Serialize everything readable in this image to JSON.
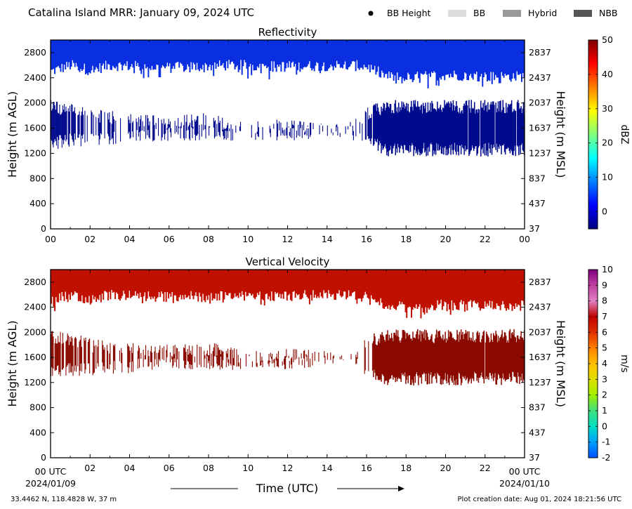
{
  "header": {
    "title": "Catalina Island MRR:  January 09, 2024 UTC",
    "legend": [
      {
        "label": "BB Height",
        "kind": "dot",
        "color": "#000000"
      },
      {
        "label": "BB",
        "kind": "swatch",
        "color": "#dcdcdc"
      },
      {
        "label": "Hybrid",
        "kind": "swatch",
        "color": "#999999"
      },
      {
        "label": "NBB",
        "kind": "swatch",
        "color": "#555555"
      }
    ]
  },
  "footer": {
    "xlabel": "Time (UTC)",
    "start_time": "00 UTC",
    "end_time": "00 UTC",
    "start_date": "2024/01/09",
    "end_date": "2024/01/10",
    "location": "33.4462 N, 118.4828 W, 37 m",
    "creation": "Plot creation date: Aug 01, 2024 18:21:56 UTC"
  },
  "chart_data": [
    {
      "type": "heatmap",
      "title": "Reflectivity",
      "xlabel": "",
      "ylabel": "Height (m AGL)",
      "ylabel_right": "Height (m MSL)",
      "xlim": [
        0,
        24
      ],
      "ylim": [
        0,
        3000
      ],
      "x_tick_labels": [
        "00",
        "02",
        "04",
        "06",
        "08",
        "10",
        "12",
        "14",
        "16",
        "18",
        "20",
        "22",
        "00"
      ],
      "y_ticks": [
        0,
        400,
        800,
        1200,
        1600,
        2000,
        2400,
        2800
      ],
      "y_right_ticks": [
        37,
        437,
        837,
        1237,
        1637,
        2037,
        2437,
        2837
      ],
      "colorbar": {
        "label": "dBZ",
        "range": [
          -5,
          50
        ],
        "ticks": [
          0,
          10,
          20,
          30,
          40,
          50
        ],
        "colors": [
          "#00007f",
          "#0000ff",
          "#007fff",
          "#00ffff",
          "#7fff7f",
          "#ffff00",
          "#ff7f00",
          "#ff0000",
          "#7f0000"
        ]
      },
      "echo_color": "#0a2fe0",
      "echo_color_dark": "#000a8c",
      "layers": [
        {
          "name": "upper",
          "t_start": 0,
          "t_end": 24,
          "top": 3000,
          "base_profile": [
            [
              0,
              2500
            ],
            [
              1,
              2600
            ],
            [
              2,
              2520
            ],
            [
              3,
              2600
            ],
            [
              6,
              2560
            ],
            [
              9,
              2600
            ],
            [
              12,
              2580
            ],
            [
              15,
              2600
            ],
            [
              16,
              2580
            ],
            [
              17,
              2420
            ],
            [
              18,
              2400
            ],
            [
              20,
              2450
            ],
            [
              22,
              2420
            ],
            [
              24,
              2420
            ]
          ]
        },
        {
          "name": "lower",
          "t_start": 0,
          "t_end": 24,
          "profile": [
            [
              0,
              1250,
              2050
            ],
            [
              1,
              1300,
              2000
            ],
            [
              2,
              1300,
              1900
            ],
            [
              4,
              1350,
              1850
            ],
            [
              6,
              1400,
              1800
            ],
            [
              8,
              1400,
              1850
            ],
            [
              10,
              1400,
              1700
            ],
            [
              12,
              1400,
              1750
            ],
            [
              14,
              1450,
              1700
            ],
            [
              15,
              1450,
              1650
            ],
            [
              16,
              1300,
              1950
            ],
            [
              17,
              1150,
              2050
            ],
            [
              19,
              1150,
              2050
            ],
            [
              21,
              1150,
              2050
            ],
            [
              24,
              1150,
              2050
            ]
          ]
        }
      ]
    },
    {
      "type": "heatmap",
      "title": "Vertical Velocity",
      "xlabel": "",
      "ylabel": "Height (m AGL)",
      "ylabel_right": "Height (m MSL)",
      "xlim": [
        0,
        24
      ],
      "ylim": [
        0,
        3000
      ],
      "x_tick_labels": [
        "00 UTC",
        "02",
        "04",
        "06",
        "08",
        "10",
        "12",
        "14",
        "16",
        "18",
        "20",
        "22",
        "00 UTC"
      ],
      "y_ticks": [
        0,
        400,
        800,
        1200,
        1600,
        2000,
        2400,
        2800
      ],
      "y_right_ticks": [
        37,
        437,
        837,
        1237,
        1637,
        2037,
        2437,
        2837
      ],
      "colorbar": {
        "label": "m/s",
        "range": [
          -2,
          10
        ],
        "ticks": [
          -2,
          -1,
          0,
          1,
          2,
          3,
          4,
          5,
          6,
          7,
          8,
          9,
          10
        ],
        "colors": [
          "#0050ff",
          "#00a0ff",
          "#00e0c0",
          "#40e080",
          "#a0f000",
          "#e0e000",
          "#ffc000",
          "#ff8000",
          "#e03000",
          "#c00000",
          "#e080c0",
          "#c040a0",
          "#800080"
        ]
      },
      "echo_color": "#c01000",
      "echo_color_dark": "#8a0a00",
      "layers": [
        {
          "name": "upper",
          "t_start": 0,
          "t_end": 24,
          "top": 3000,
          "base_profile": [
            [
              0,
              2500
            ],
            [
              1,
              2600
            ],
            [
              2,
              2520
            ],
            [
              3,
              2600
            ],
            [
              6,
              2560
            ],
            [
              9,
              2600
            ],
            [
              12,
              2580
            ],
            [
              15,
              2600
            ],
            [
              16,
              2580
            ],
            [
              17,
              2420
            ],
            [
              18,
              2400
            ],
            [
              20,
              2450
            ],
            [
              22,
              2420
            ],
            [
              24,
              2420
            ]
          ]
        },
        {
          "name": "lower",
          "t_start": 0,
          "t_end": 24,
          "profile": [
            [
              0,
              1250,
              2050
            ],
            [
              1,
              1300,
              2000
            ],
            [
              2,
              1300,
              1900
            ],
            [
              4,
              1350,
              1850
            ],
            [
              6,
              1400,
              1800
            ],
            [
              8,
              1400,
              1850
            ],
            [
              10,
              1400,
              1700
            ],
            [
              12,
              1400,
              1750
            ],
            [
              14,
              1450,
              1700
            ],
            [
              15,
              1450,
              1650
            ],
            [
              16,
              1300,
              1950
            ],
            [
              17,
              1150,
              2050
            ],
            [
              19,
              1150,
              2050
            ],
            [
              21,
              1150,
              2050
            ],
            [
              24,
              1150,
              2050
            ]
          ]
        }
      ]
    }
  ]
}
